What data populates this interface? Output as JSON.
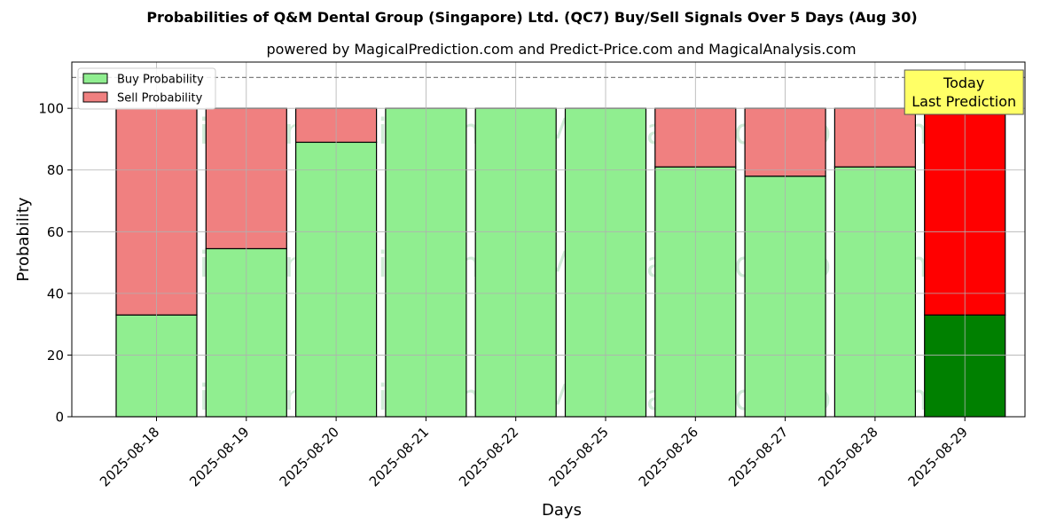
{
  "title": "Probabilities of Q&M Dental Group (Singapore) Ltd. (QC7) Buy/Sell Signals Over 5 Days (Aug 30)",
  "subtitle": "powered by MagicalPrediction.com and Predict-Price.com and MagicalAnalysis.com",
  "watermarks": [
    "MagicalAnalysis.com",
    "MagicalPrediction.com"
  ],
  "colors": {
    "buy": "#90ee90",
    "sell": "#f08080",
    "buy_today": "#008000",
    "sell_today": "#ff0000",
    "today_box": "#ffff66",
    "watermark": "#7cc98e"
  },
  "chart_data": {
    "type": "bar",
    "stacked": true,
    "xlabel": "Days",
    "ylabel": "Probability",
    "ylim": [
      0,
      115
    ],
    "yticks": [
      0,
      20,
      40,
      60,
      80,
      100
    ],
    "grid": true,
    "legend_position": "top-left",
    "reference_line": 110,
    "categories": [
      "2025-08-18",
      "2025-08-19",
      "2025-08-20",
      "2025-08-21",
      "2025-08-22",
      "2025-08-25",
      "2025-08-26",
      "2025-08-27",
      "2025-08-28",
      "2025-08-29"
    ],
    "series": [
      {
        "name": "Buy Probability",
        "values": [
          33,
          54.5,
          89,
          100,
          100,
          100,
          81,
          78,
          81,
          33
        ]
      },
      {
        "name": "Sell Probability",
        "values": [
          67,
          45.5,
          11,
          0,
          0,
          0,
          19,
          22,
          19,
          67
        ]
      }
    ],
    "annotation": {
      "lines": [
        "Today",
        "Last Prediction"
      ],
      "category": "2025-08-29"
    }
  }
}
